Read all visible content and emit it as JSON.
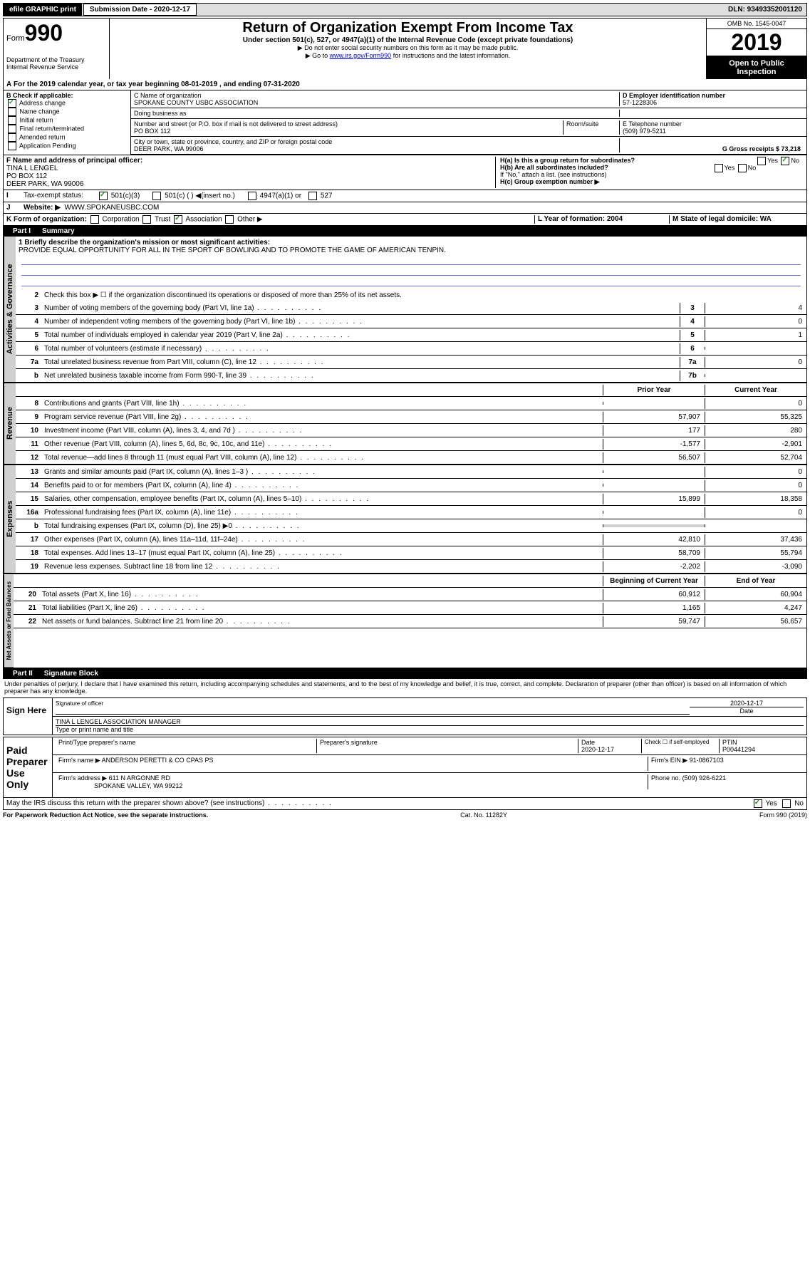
{
  "top": {
    "efile": "efile GRAPHIC print",
    "sub_label": "Submission Date - 2020-12-17",
    "dln": "DLN: 93493352001120"
  },
  "header": {
    "form_word": "Form",
    "form_num": "990",
    "title": "Return of Organization Exempt From Income Tax",
    "sub": "Under section 501(c), 527, or 4947(a)(1) of the Internal Revenue Code (except private foundations)",
    "note1": "▶ Do not enter social security numbers on this form as it may be made public.",
    "note2_a": "▶ Go to ",
    "note2_link": "www.irs.gov/Form990",
    "note2_b": " for instructions and the latest information.",
    "omb": "OMB No. 1545-0047",
    "year": "2019",
    "open": "Open to Public Inspection",
    "dept": "Department of the Treasury\nInternal Revenue Service"
  },
  "line_a": "For the 2019 calendar year, or tax year beginning 08-01-2019    , and ending 07-31-2020",
  "box_b": {
    "label": "B Check if applicable:",
    "items": [
      "Address change",
      "Name change",
      "Initial return",
      "Final return/terminated",
      "Amended return",
      "Application Pending"
    ]
  },
  "box_c": {
    "label": "C Name of organization",
    "name": "SPOKANE COUNTY USBC ASSOCIATION",
    "dba": "Doing business as",
    "addr_label": "Number and street (or P.O. box if mail is not delivered to street address)",
    "room": "Room/suite",
    "addr": "PO BOX 112",
    "city_label": "City or town, state or province, country, and ZIP or foreign postal code",
    "city": "DEER PARK, WA  99006"
  },
  "box_d": {
    "label": "D Employer identification number",
    "ein": "57-1228306"
  },
  "box_e": {
    "label": "E Telephone number",
    "phone": "(509) 979-5211"
  },
  "box_g": {
    "label": "G Gross receipts $ 73,218"
  },
  "box_f": {
    "label": "F  Name and address of principal officer:",
    "name": "TINA L LENGEL",
    "addr": "PO BOX 112",
    "city": "DEER PARK, WA  99006"
  },
  "box_h": {
    "ha": "H(a)  Is this a group return for subordinates?",
    "hb": "H(b)  Are all subordinates included?",
    "hb_note": "If \"No,\" attach a list. (see instructions)",
    "hc": "H(c)  Group exemption number ▶",
    "yes": "Yes",
    "no": "No"
  },
  "tax_status": {
    "label": "Tax-exempt status:",
    "opts": [
      "501(c)(3)",
      "501(c) (  ) ◀(insert no.)",
      "4947(a)(1) or",
      "527"
    ]
  },
  "box_j": {
    "label": "Website: ▶",
    "url": "WWW.SPOKANEUSBC.COM"
  },
  "box_k": {
    "label": "K Form of organization:",
    "opts": [
      "Corporation",
      "Trust",
      "Association",
      "Other ▶"
    ]
  },
  "box_l": {
    "label": "L Year of formation: 2004"
  },
  "box_m": {
    "label": "M State of legal domicile: WA"
  },
  "part1": {
    "num": "Part I",
    "title": "Summary"
  },
  "summary": {
    "q1_label": "1  Briefly describe the organization's mission or most significant activities:",
    "q1_text": "PROVIDE EQUAL OPPORTUNITY FOR ALL IN THE SPORT OF BOWLING AND TO PROMOTE THE GAME OF AMERICAN TENPIN.",
    "q2": "Check this box ▶ ☐  if the organization discontinued its operations or disposed of more than 25% of its net assets.",
    "rows_gov": [
      {
        "n": "3",
        "d": "Number of voting members of the governing body (Part VI, line 1a)",
        "b": "3",
        "v": "4"
      },
      {
        "n": "4",
        "d": "Number of independent voting members of the governing body (Part VI, line 1b)",
        "b": "4",
        "v": "0"
      },
      {
        "n": "5",
        "d": "Total number of individuals employed in calendar year 2019 (Part V, line 2a)",
        "b": "5",
        "v": "1"
      },
      {
        "n": "6",
        "d": "Total number of volunteers (estimate if necessary)",
        "b": "6",
        "v": ""
      },
      {
        "n": "7a",
        "d": "Total unrelated business revenue from Part VIII, column (C), line 12",
        "b": "7a",
        "v": "0"
      },
      {
        "n": "b",
        "d": "Net unrelated business taxable income from Form 990-T, line 39",
        "b": "7b",
        "v": ""
      }
    ],
    "col_prior": "Prior Year",
    "col_current": "Current Year",
    "rows_rev": [
      {
        "n": "8",
        "d": "Contributions and grants (Part VIII, line 1h)",
        "p": "",
        "c": "0"
      },
      {
        "n": "9",
        "d": "Program service revenue (Part VIII, line 2g)",
        "p": "57,907",
        "c": "55,325"
      },
      {
        "n": "10",
        "d": "Investment income (Part VIII, column (A), lines 3, 4, and 7d )",
        "p": "177",
        "c": "280"
      },
      {
        "n": "11",
        "d": "Other revenue (Part VIII, column (A), lines 5, 6d, 8c, 9c, 10c, and 11e)",
        "p": "-1,577",
        "c": "-2,901"
      },
      {
        "n": "12",
        "d": "Total revenue—add lines 8 through 11 (must equal Part VIII, column (A), line 12)",
        "p": "56,507",
        "c": "52,704"
      }
    ],
    "rows_exp": [
      {
        "n": "13",
        "d": "Grants and similar amounts paid (Part IX, column (A), lines 1–3 )",
        "p": "",
        "c": "0"
      },
      {
        "n": "14",
        "d": "Benefits paid to or for members (Part IX, column (A), line 4)",
        "p": "",
        "c": "0"
      },
      {
        "n": "15",
        "d": "Salaries, other compensation, employee benefits (Part IX, column (A), lines 5–10)",
        "p": "15,899",
        "c": "18,358"
      },
      {
        "n": "16a",
        "d": "Professional fundraising fees (Part IX, column (A), line 11e)",
        "p": "",
        "c": "0"
      },
      {
        "n": "b",
        "d": "Total fundraising expenses (Part IX, column (D), line 25) ▶0",
        "p": "",
        "c": ""
      },
      {
        "n": "17",
        "d": "Other expenses (Part IX, column (A), lines 11a–11d, 11f–24e)",
        "p": "42,810",
        "c": "37,436"
      },
      {
        "n": "18",
        "d": "Total expenses. Add lines 13–17 (must equal Part IX, column (A), line 25)",
        "p": "58,709",
        "c": "55,794"
      },
      {
        "n": "19",
        "d": "Revenue less expenses. Subtract line 18 from line 12",
        "p": "-2,202",
        "c": "-3,090"
      }
    ],
    "col_begin": "Beginning of Current Year",
    "col_end": "End of Year",
    "rows_net": [
      {
        "n": "20",
        "d": "Total assets (Part X, line 16)",
        "p": "60,912",
        "c": "60,904"
      },
      {
        "n": "21",
        "d": "Total liabilities (Part X, line 26)",
        "p": "1,165",
        "c": "4,247"
      },
      {
        "n": "22",
        "d": "Net assets or fund balances. Subtract line 21 from line 20",
        "p": "59,747",
        "c": "56,657"
      }
    ]
  },
  "vert_labels": {
    "gov": "Activities & Governance",
    "rev": "Revenue",
    "exp": "Expenses",
    "net": "Net Assets or Fund Balances"
  },
  "part2": {
    "num": "Part II",
    "title": "Signature Block"
  },
  "perjury": "Under penalties of perjury, I declare that I have examined this return, including accompanying schedules and statements, and to the best of my knowledge and belief, it is true, correct, and complete. Declaration of preparer (other than officer) is based on all information of which preparer has any knowledge.",
  "sign": {
    "here": "Sign Here",
    "sig_off": "Signature of officer",
    "date": "2020-12-17",
    "date_lbl": "Date",
    "name": "TINA L LENGEL  ASSOCIATION MANAGER",
    "name_lbl": "Type or print name and title"
  },
  "paid": {
    "label": "Paid Preparer Use Only",
    "prep_name_lbl": "Print/Type preparer's name",
    "prep_sig_lbl": "Preparer's signature",
    "date_lbl": "Date",
    "date": "2020-12-17",
    "check_lbl": "Check ☐ if self-employed",
    "ptin_lbl": "PTIN",
    "ptin": "P00441294",
    "firm_name_lbl": "Firm's name    ▶",
    "firm_name": "ANDERSON PERETTI & CO CPAS PS",
    "firm_ein_lbl": "Firm's EIN ▶",
    "firm_ein": "91-0867103",
    "firm_addr_lbl": "Firm's address ▶",
    "firm_addr": "611 N ARGONNE RD",
    "firm_city": "SPOKANE VALLEY, WA  99212",
    "phone_lbl": "Phone no.",
    "phone": "(509) 926-6221"
  },
  "discuss": {
    "q": "May the IRS discuss this return with the preparer shown above? (see instructions)",
    "yes": "Yes",
    "no": "No"
  },
  "footer": {
    "pra": "For Paperwork Reduction Act Notice, see the separate instructions.",
    "cat": "Cat. No. 11282Y",
    "form": "Form 990 (2019)"
  }
}
